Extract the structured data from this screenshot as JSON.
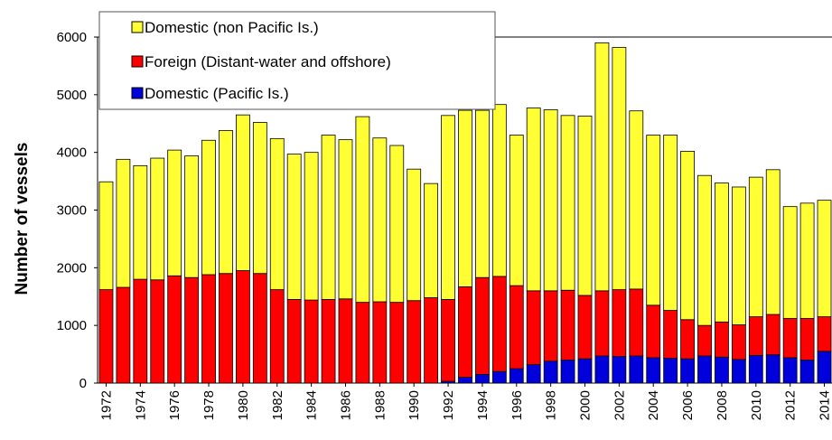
{
  "chart_data": {
    "type": "bar",
    "stacked": true,
    "title": "",
    "xlabel": "",
    "ylabel": "Number of vessels",
    "ylim": [
      0,
      6000
    ],
    "yticks": [
      "0",
      "1000",
      "2000",
      "3000",
      "4000",
      "5000",
      "6000"
    ],
    "grid": false,
    "legend_position": "top-left",
    "categories": [
      "1972",
      "1973",
      "1974",
      "1975",
      "1976",
      "1977",
      "1978",
      "1979",
      "1980",
      "1981",
      "1982",
      "1983",
      "1984",
      "1985",
      "1986",
      "1987",
      "1988",
      "1989",
      "1990",
      "1991",
      "1992",
      "1993",
      "1994",
      "1995",
      "1996",
      "1997",
      "1998",
      "1999",
      "2000",
      "2001",
      "2002",
      "2003",
      "2004",
      "2005",
      "2006",
      "2007",
      "2008",
      "2009",
      "2010",
      "2011",
      "2012",
      "2013",
      "2014"
    ],
    "xtick_labels": [
      "1972",
      "1974",
      "1976",
      "1978",
      "1980",
      "1982",
      "1984",
      "1986",
      "1988",
      "1990",
      "1992",
      "1994",
      "1996",
      "1998",
      "2000",
      "2002",
      "2004",
      "2006",
      "2008",
      "2010",
      "2012",
      "2014"
    ],
    "series": [
      {
        "name": "Domestic (Pacific Is.)",
        "color": "#0000dd",
        "values": [
          0,
          0,
          0,
          0,
          0,
          0,
          0,
          0,
          0,
          0,
          0,
          0,
          0,
          0,
          0,
          0,
          0,
          0,
          0,
          0,
          30,
          100,
          150,
          200,
          250,
          320,
          380,
          400,
          420,
          470,
          460,
          470,
          440,
          430,
          420,
          470,
          450,
          410,
          480,
          490,
          440,
          400,
          550
        ]
      },
      {
        "name": "Foreign (Distant-water and offshore)",
        "color": "#ff0000",
        "values": [
          1620,
          1660,
          1800,
          1790,
          1860,
          1830,
          1880,
          1900,
          1950,
          1900,
          1620,
          1450,
          1440,
          1450,
          1460,
          1400,
          1410,
          1400,
          1430,
          1480,
          1420,
          1570,
          1680,
          1650,
          1440,
          1280,
          1220,
          1210,
          1100,
          1130,
          1160,
          1160,
          910,
          830,
          680,
          530,
          610,
          600,
          670,
          700,
          680,
          720,
          600
        ]
      },
      {
        "name": "Domestic (non Pacific Is.)",
        "color": "#ffff33",
        "values": [
          1870,
          2220,
          1970,
          2110,
          2180,
          2110,
          2330,
          2480,
          2700,
          2620,
          2620,
          2520,
          2560,
          2850,
          2760,
          3220,
          2840,
          2720,
          2280,
          1980,
          3190,
          3060,
          2900,
          2980,
          2610,
          3170,
          3140,
          3030,
          3110,
          4300,
          4200,
          3090,
          2950,
          3040,
          2920,
          2600,
          2410,
          2390,
          2420,
          2510,
          1940,
          2000,
          2020
        ]
      }
    ]
  }
}
